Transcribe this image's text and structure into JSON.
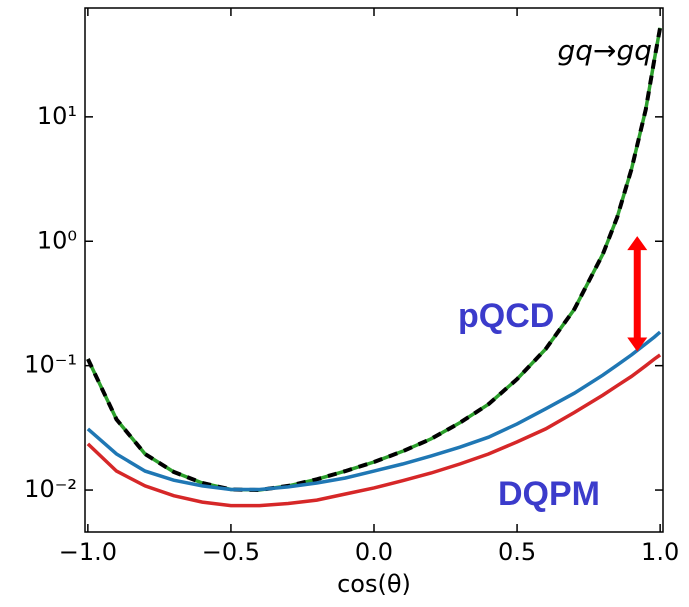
{
  "chart_data": {
    "type": "line",
    "xlabel": "cos(θ)",
    "x": [
      -1,
      -0.9,
      -0.8,
      -0.7,
      -0.6,
      -0.5,
      -0.4,
      -0.3,
      -0.2,
      -0.1,
      0,
      0.1,
      0.2,
      0.3,
      0.4,
      0.5,
      0.6,
      0.7,
      0.8,
      0.85,
      0.9,
      0.95,
      0.98,
      1.0
    ],
    "series": [
      {
        "color": "#2ca02c",
        "values": [
          0.113,
          0.037,
          0.0195,
          0.014,
          0.0114,
          0.0101,
          0.01,
          0.0108,
          0.0122,
          0.0142,
          0.0168,
          0.0205,
          0.0258,
          0.0347,
          0.049,
          0.078,
          0.136,
          0.284,
          0.79,
          1.56,
          3.8,
          11.5,
          29,
          52
        ]
      },
      {
        "color": "#000000",
        "dashed": true,
        "values": [
          0.113,
          0.037,
          0.0195,
          0.014,
          0.0114,
          0.0101,
          0.01,
          0.0108,
          0.0122,
          0.0142,
          0.0168,
          0.0205,
          0.0258,
          0.0347,
          0.049,
          0.078,
          0.136,
          0.284,
          0.79,
          1.56,
          3.8,
          11.5,
          29,
          52
        ]
      },
      {
        "color": "#1f77b4",
        "values": [
          0.031,
          0.0195,
          0.0142,
          0.012,
          0.0108,
          0.0101,
          0.0101,
          0.0106,
          0.0114,
          0.0125,
          0.0142,
          0.0162,
          0.0188,
          0.0221,
          0.0266,
          0.034,
          0.045,
          0.06,
          0.084,
          0.101,
          0.122,
          0.15,
          0.17,
          0.186
        ]
      },
      {
        "color": "#d62728",
        "values": [
          0.0235,
          0.0142,
          0.0108,
          0.009,
          0.008,
          0.0075,
          0.0075,
          0.0078,
          0.0083,
          0.0093,
          0.0104,
          0.0119,
          0.0137,
          0.0162,
          0.0195,
          0.0244,
          0.031,
          0.042,
          0.058,
          0.069,
          0.082,
          0.1,
          0.113,
          0.122
        ]
      }
    ],
    "log_y": true,
    "xlim": [
      -1.01,
      1.01
    ],
    "ylim": [
      0.0046,
      75
    ],
    "xticks": [
      {
        "value": -1,
        "label": "−1.0"
      },
      {
        "value": -0.5,
        "label": "−0.5"
      },
      {
        "value": 0,
        "label": "0.0"
      },
      0.5,
      {
        "value": 1,
        "label": "1.0"
      }
    ],
    "yticks": [
      {
        "value": 0.01,
        "label": "10⁻²"
      },
      {
        "value": 0.1,
        "label": "10⁻¹"
      },
      {
        "value": 1,
        "label": "10⁰"
      },
      {
        "value": 10,
        "label": "10¹"
      }
    ],
    "arrow": {
      "x": 0.92,
      "from": 0.13,
      "to": 1.1,
      "color": "#ff0000"
    },
    "annotations": [
      "gq→gq",
      "pQCD",
      "DQPM"
    ]
  }
}
